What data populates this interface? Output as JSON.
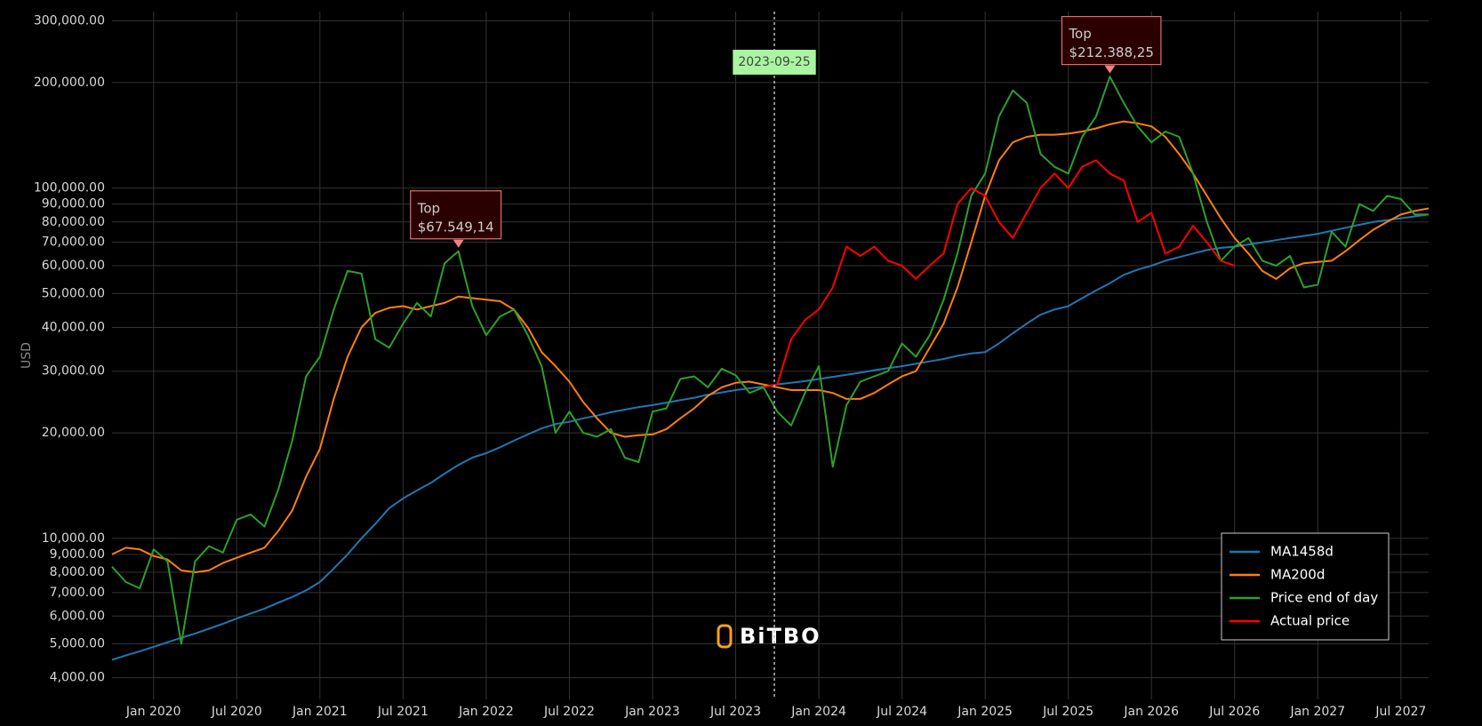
{
  "chart_data": {
    "type": "line",
    "y_label": "USD",
    "watermark": "BiTBO",
    "log_y": true,
    "grid": true,
    "legend_position": "bottom-right",
    "x": [
      "2019-10",
      "2019-11",
      "2019-12",
      "2020-01",
      "2020-02",
      "2020-03",
      "2020-04",
      "2020-05",
      "2020-06",
      "2020-07",
      "2020-08",
      "2020-09",
      "2020-10",
      "2020-11",
      "2020-12",
      "2021-01",
      "2021-02",
      "2021-03",
      "2021-04",
      "2021-05",
      "2021-06",
      "2021-07",
      "2021-08",
      "2021-09",
      "2021-10",
      "2021-11",
      "2021-12",
      "2022-01",
      "2022-02",
      "2022-03",
      "2022-04",
      "2022-05",
      "2022-06",
      "2022-07",
      "2022-08",
      "2022-09",
      "2022-10",
      "2022-11",
      "2022-12",
      "2023-01",
      "2023-02",
      "2023-03",
      "2023-04",
      "2023-05",
      "2023-06",
      "2023-07",
      "2023-08",
      "2023-09",
      "2023-10",
      "2023-11",
      "2023-12",
      "2024-01",
      "2024-02",
      "2024-03",
      "2024-04",
      "2024-05",
      "2024-06",
      "2024-07",
      "2024-08",
      "2024-09",
      "2024-10",
      "2024-11",
      "2024-12",
      "2025-01",
      "2025-02",
      "2025-03",
      "2025-04",
      "2025-05",
      "2025-06",
      "2025-07",
      "2025-08",
      "2025-09",
      "2025-10",
      "2025-11",
      "2025-12",
      "2026-01",
      "2026-02",
      "2026-03",
      "2026-04",
      "2026-05",
      "2026-06",
      "2026-07",
      "2026-08",
      "2026-09",
      "2026-10",
      "2026-11",
      "2026-12",
      "2027-01",
      "2027-02",
      "2027-03",
      "2027-04",
      "2027-05",
      "2027-06",
      "2027-07",
      "2027-08",
      "2027-09"
    ],
    "xlim": [
      "2019-10",
      "2027-09"
    ],
    "xticks": [
      {
        "value": "2020-01",
        "label": "Jan 2020"
      },
      {
        "value": "2020-07",
        "label": "Jul 2020"
      },
      {
        "value": "2021-01",
        "label": "Jan 2021"
      },
      {
        "value": "2021-07",
        "label": "Jul 2021"
      },
      {
        "value": "2022-01",
        "label": "Jan 2022"
      },
      {
        "value": "2022-07",
        "label": "Jul 2022"
      },
      {
        "value": "2023-01",
        "label": "Jan 2023"
      },
      {
        "value": "2023-07",
        "label": "Jul 2023"
      },
      {
        "value": "2024-01",
        "label": "Jan 2024"
      },
      {
        "value": "2024-07",
        "label": "Jul 2024"
      },
      {
        "value": "2025-01",
        "label": "Jan 2025"
      },
      {
        "value": "2025-07",
        "label": "Jul 2025"
      },
      {
        "value": "2026-01",
        "label": "Jan 2026"
      },
      {
        "value": "2026-07",
        "label": "Jul 2026"
      },
      {
        "value": "2027-01",
        "label": "Jan 2027"
      },
      {
        "value": "2027-07",
        "label": "Jul 2027"
      }
    ],
    "ylim": [
      3470,
      319000
    ],
    "yticks": [
      {
        "value": 4000,
        "label": "4,000.00"
      },
      {
        "value": 5000,
        "label": "5,000.00"
      },
      {
        "value": 6000,
        "label": "6,000.00"
      },
      {
        "value": 7000,
        "label": "7,000.00"
      },
      {
        "value": 8000,
        "label": "8,000.00"
      },
      {
        "value": 9000,
        "label": "9,000.00"
      },
      {
        "value": 10000,
        "label": "10,000.00"
      },
      {
        "value": 20000,
        "label": "20,000.00"
      },
      {
        "value": 30000,
        "label": "30,000.00"
      },
      {
        "value": 40000,
        "label": "40,000.00"
      },
      {
        "value": 50000,
        "label": "50,000.00"
      },
      {
        "value": 60000,
        "label": "60,000.00"
      },
      {
        "value": 70000,
        "label": "70,000.00"
      },
      {
        "value": 80000,
        "label": "80,000.00"
      },
      {
        "value": 90000,
        "label": "90,000.00"
      },
      {
        "value": 100000,
        "label": "100,000.00"
      },
      {
        "value": 200000,
        "label": "200,000.00"
      },
      {
        "value": 300000,
        "label": "300,000.00"
      }
    ],
    "series": [
      {
        "name": "MA1458d",
        "color": "#1f77b4",
        "values": [
          4500,
          4630,
          4760,
          4900,
          5050,
          5200,
          5350,
          5520,
          5700,
          5900,
          6100,
          6300,
          6550,
          6800,
          7100,
          7500,
          8200,
          9000,
          10000,
          11000,
          12200,
          13000,
          13700,
          14400,
          15300,
          16200,
          17000,
          17500,
          18200,
          19000,
          19800,
          20600,
          21200,
          21500,
          22000,
          22400,
          22900,
          23300,
          23700,
          24000,
          24400,
          24800,
          25200,
          25700,
          26100,
          26500,
          26800,
          27100,
          27500,
          27800,
          28100,
          28500,
          28900,
          29300,
          29700,
          30200,
          30600,
          31000,
          31500,
          32000,
          32500,
          33200,
          33700,
          34000,
          36000,
          38500,
          41000,
          43500,
          45000,
          46000,
          48500,
          51000,
          53500,
          56500,
          58500,
          60000,
          62000,
          63500,
          65000,
          66500,
          67500,
          68000,
          69000,
          70000,
          71000,
          72000,
          73000,
          74000,
          75500,
          77000,
          78500,
          80000,
          81000,
          82000,
          83000,
          84000
        ]
      },
      {
        "name": "MA200d",
        "color": "#ff7f0e",
        "values": [
          9000,
          9400,
          9300,
          8900,
          8700,
          8100,
          8000,
          8100,
          8500,
          8800,
          9100,
          9400,
          10500,
          12000,
          15000,
          18000,
          25000,
          33000,
          40000,
          44000,
          45500,
          46000,
          45000,
          46000,
          47000,
          49000,
          48500,
          48000,
          47500,
          45000,
          40000,
          34000,
          31000,
          28000,
          24500,
          22000,
          20000,
          19500,
          19700,
          19800,
          20500,
          22000,
          23500,
          25500,
          27000,
          27800,
          28000,
          27500,
          27000,
          26500,
          26500,
          26500,
          26000,
          25000,
          25000,
          26000,
          27500,
          29000,
          30000,
          35000,
          41000,
          52000,
          70000,
          95000,
          120000,
          135000,
          140000,
          142000,
          142000,
          143000,
          145000,
          148000,
          152000,
          155000,
          153000,
          150000,
          140000,
          125000,
          110000,
          95000,
          82000,
          72000,
          65000,
          58000,
          55000,
          59000,
          61000,
          61500,
          62000,
          66000,
          71000,
          76000,
          80000,
          84000,
          86000,
          87500
        ]
      },
      {
        "name": "Price end of day",
        "color": "#2ca02c",
        "values": [
          8300,
          7500,
          7200,
          9300,
          8600,
          5000,
          8600,
          9500,
          9100,
          11300,
          11700,
          10800,
          13800,
          19000,
          29000,
          33000,
          45000,
          58000,
          57000,
          37000,
          35000,
          41000,
          47000,
          43000,
          61000,
          66000,
          46000,
          38000,
          43000,
          45000,
          38000,
          31000,
          20000,
          23000,
          20000,
          19500,
          20500,
          17000,
          16500,
          23000,
          23500,
          28500,
          29000,
          27000,
          30500,
          29200,
          26000,
          27000,
          23000,
          21000,
          26000,
          31000,
          16000,
          24000,
          28000,
          29000,
          30000,
          36000,
          33000,
          38000,
          48000,
          65000,
          95000,
          110000,
          160000,
          190000,
          175000,
          125000,
          115000,
          110000,
          140000,
          160000,
          208000,
          175000,
          150000,
          135000,
          145000,
          140000,
          110000,
          80000,
          62000,
          68000,
          72000,
          62000,
          60000,
          64000,
          52000,
          53000,
          75000,
          68000,
          90000,
          86000,
          95000,
          93000,
          84000,
          84000
        ]
      },
      {
        "name": "Actual price",
        "color": "#ff0000",
        "values": [
          null,
          null,
          null,
          null,
          null,
          null,
          null,
          null,
          null,
          null,
          null,
          null,
          null,
          null,
          null,
          null,
          null,
          null,
          null,
          null,
          null,
          null,
          null,
          null,
          null,
          null,
          null,
          null,
          null,
          null,
          null,
          null,
          null,
          null,
          null,
          null,
          null,
          null,
          null,
          null,
          null,
          null,
          null,
          null,
          null,
          null,
          null,
          27000,
          27500,
          37000,
          42000,
          45000,
          52000,
          68000,
          64000,
          68000,
          62000,
          60000,
          55000,
          60000,
          65000,
          90000,
          100000,
          95000,
          80000,
          72000,
          85000,
          100000,
          110000,
          100000,
          115000,
          120000,
          110000,
          105000,
          80000,
          85000,
          65000,
          68000,
          78000,
          70000,
          62000,
          60000,
          null,
          null,
          null,
          null,
          null,
          null,
          null,
          null,
          null,
          null,
          null,
          null,
          null,
          null
        ]
      }
    ],
    "date_marker": {
      "x": "2023-09-25",
      "label": "2023-09-25"
    },
    "tops": [
      {
        "label": "Top",
        "x": "2021-11",
        "value": 67549.14,
        "value_label": "$67.549,14"
      },
      {
        "label": "Top",
        "x": "2025-10",
        "value": 212388.25,
        "value_label": "$212.388,25"
      }
    ]
  }
}
